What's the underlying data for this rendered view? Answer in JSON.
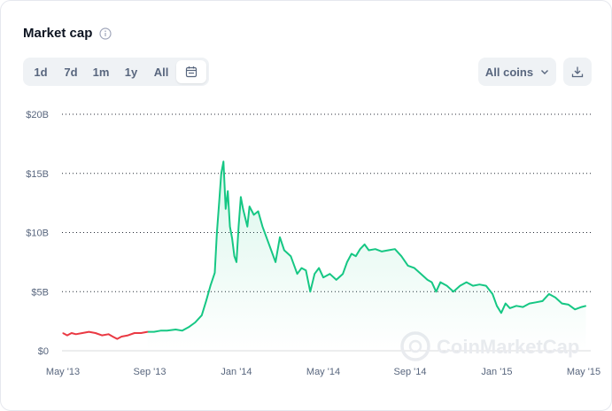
{
  "header": {
    "title": "Market cap"
  },
  "range_buttons": [
    "1d",
    "7d",
    "1m",
    "1y",
    "All"
  ],
  "coin_select": {
    "label": "All coins"
  },
  "watermark": "CoinMarketCap",
  "colors": {
    "up": "#16c784",
    "down": "#ea3943",
    "grid": "#0d1421",
    "text": "#58667e"
  },
  "icons": {
    "info": "info-icon",
    "calendar": "calendar-icon",
    "chevron": "chevron-down-icon",
    "download": "download-icon"
  },
  "chart_data": {
    "type": "line",
    "title": "Market cap",
    "y_ticks": [
      "$0",
      "$5B",
      "$10B",
      "$15B",
      "$20B"
    ],
    "y_tick_values": [
      0,
      5,
      10,
      15,
      20
    ],
    "ylim": [
      0,
      20
    ],
    "y_unit": "B USD",
    "x_ticks": [
      "May '13",
      "Sep '13",
      "Jan '14",
      "May '14",
      "Sep '14",
      "Jan '15",
      "May '15"
    ],
    "x_tick_months": [
      0,
      4,
      8,
      12,
      16,
      20,
      24
    ],
    "xlim_months": [
      0,
      24.1
    ],
    "grid": true,
    "series": [
      {
        "color_rule": "red before Sep '13, green after",
        "points": [
          [
            0,
            1.5
          ],
          [
            0.2,
            1.3
          ],
          [
            0.4,
            1.5
          ],
          [
            0.6,
            1.4
          ],
          [
            0.9,
            1.5
          ],
          [
            1.2,
            1.6
          ],
          [
            1.5,
            1.5
          ],
          [
            1.8,
            1.3
          ],
          [
            2.1,
            1.4
          ],
          [
            2.3,
            1.2
          ],
          [
            2.5,
            1.0
          ],
          [
            2.7,
            1.2
          ],
          [
            3.0,
            1.3
          ],
          [
            3.3,
            1.5
          ],
          [
            3.6,
            1.5
          ],
          [
            3.9,
            1.6
          ],
          [
            4.2,
            1.6
          ],
          [
            4.5,
            1.7
          ],
          [
            4.8,
            1.7
          ],
          [
            5.2,
            1.8
          ],
          [
            5.5,
            1.7
          ],
          [
            5.8,
            2.0
          ],
          [
            6.1,
            2.4
          ],
          [
            6.4,
            3.0
          ],
          [
            6.6,
            4.2
          ],
          [
            6.8,
            5.5
          ],
          [
            7.0,
            6.6
          ],
          [
            7.1,
            10.0
          ],
          [
            7.2,
            12.5
          ],
          [
            7.3,
            15.0
          ],
          [
            7.4,
            16.0
          ],
          [
            7.5,
            12.0
          ],
          [
            7.6,
            13.5
          ],
          [
            7.7,
            10.5
          ],
          [
            7.8,
            9.5
          ],
          [
            7.9,
            8.0
          ],
          [
            8.0,
            7.5
          ],
          [
            8.1,
            10.5
          ],
          [
            8.2,
            13.0
          ],
          [
            8.3,
            12.0
          ],
          [
            8.5,
            10.5
          ],
          [
            8.6,
            12.2
          ],
          [
            8.8,
            11.5
          ],
          [
            9.0,
            11.8
          ],
          [
            9.2,
            10.5
          ],
          [
            9.4,
            9.5
          ],
          [
            9.6,
            8.5
          ],
          [
            9.8,
            7.5
          ],
          [
            10.0,
            9.6
          ],
          [
            10.2,
            8.5
          ],
          [
            10.5,
            8.0
          ],
          [
            10.8,
            6.5
          ],
          [
            11.0,
            7.0
          ],
          [
            11.2,
            6.8
          ],
          [
            11.4,
            5.0
          ],
          [
            11.6,
            6.5
          ],
          [
            11.8,
            7.0
          ],
          [
            12.0,
            6.2
          ],
          [
            12.3,
            6.5
          ],
          [
            12.6,
            6.0
          ],
          [
            12.9,
            6.5
          ],
          [
            13.1,
            7.5
          ],
          [
            13.3,
            8.2
          ],
          [
            13.5,
            8.0
          ],
          [
            13.7,
            8.6
          ],
          [
            13.9,
            9.0
          ],
          [
            14.1,
            8.5
          ],
          [
            14.4,
            8.6
          ],
          [
            14.7,
            8.4
          ],
          [
            15.0,
            8.5
          ],
          [
            15.3,
            8.6
          ],
          [
            15.6,
            8.0
          ],
          [
            15.9,
            7.2
          ],
          [
            16.2,
            7.0
          ],
          [
            16.5,
            6.5
          ],
          [
            16.8,
            6.0
          ],
          [
            17.0,
            5.8
          ],
          [
            17.2,
            5.0
          ],
          [
            17.4,
            5.8
          ],
          [
            17.7,
            5.5
          ],
          [
            18.0,
            5.0
          ],
          [
            18.3,
            5.5
          ],
          [
            18.6,
            5.8
          ],
          [
            18.9,
            5.5
          ],
          [
            19.2,
            5.6
          ],
          [
            19.5,
            5.5
          ],
          [
            19.8,
            4.8
          ],
          [
            20.0,
            3.8
          ],
          [
            20.2,
            3.2
          ],
          [
            20.4,
            4.0
          ],
          [
            20.6,
            3.6
          ],
          [
            20.9,
            3.8
          ],
          [
            21.2,
            3.7
          ],
          [
            21.5,
            4.0
          ],
          [
            21.8,
            4.1
          ],
          [
            22.1,
            4.2
          ],
          [
            22.4,
            4.8
          ],
          [
            22.7,
            4.5
          ],
          [
            23.0,
            4.0
          ],
          [
            23.3,
            3.9
          ],
          [
            23.6,
            3.5
          ],
          [
            23.9,
            3.7
          ],
          [
            24.1,
            3.8
          ]
        ]
      }
    ]
  }
}
